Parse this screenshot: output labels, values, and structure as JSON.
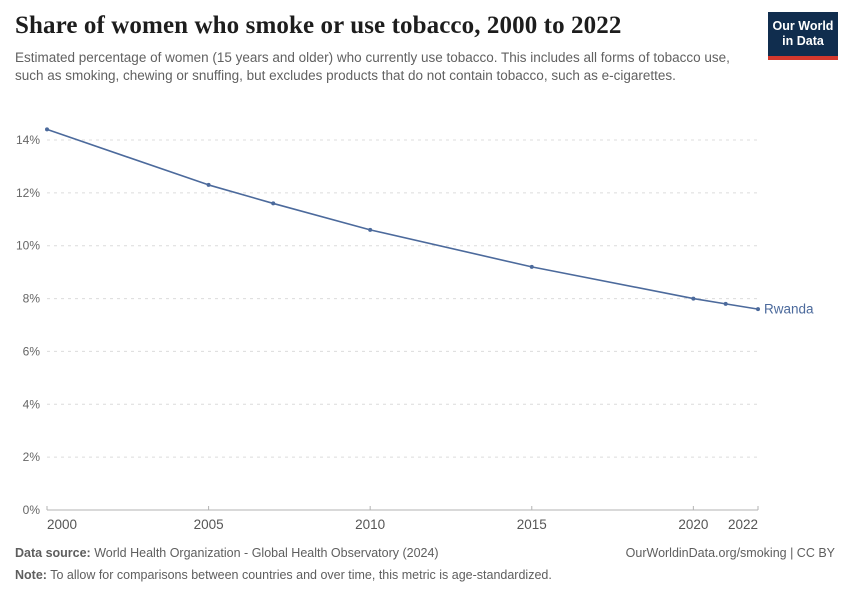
{
  "header": {
    "title": "Share of women who smoke or use tobacco, 2000 to 2022",
    "subtitle": "Estimated percentage of women (15 years and older) who currently use tobacco. This includes all forms of tobacco use, such as smoking, chewing or snuffing, but excludes products that do not contain tobacco, such as e-cigarettes.",
    "logo": {
      "line1": "Our World",
      "line2": "in Data",
      "bg_color": "#102d4e",
      "stripe_color": "#d4382d"
    }
  },
  "chart_data": {
    "type": "line",
    "title": "Share of women who smoke or use tobacco, 2000 to 2022",
    "xlabel": "",
    "ylabel": "",
    "xlim": [
      2000,
      2022
    ],
    "ylim": [
      0,
      14
    ],
    "x_ticks": [
      2000,
      2005,
      2010,
      2015,
      2020,
      2022
    ],
    "y_ticks": [
      0,
      2,
      4,
      6,
      8,
      10,
      12,
      14
    ],
    "y_tick_suffix": "%",
    "grid": "horizontal-dashed",
    "legend": "line-end-label",
    "series": [
      {
        "name": "Rwanda",
        "color": "#4C6A9C",
        "x": [
          2000,
          2005,
          2007,
          2010,
          2015,
          2020,
          2021,
          2022
        ],
        "values": [
          14.4,
          12.3,
          11.6,
          10.6,
          9.2,
          8.0,
          7.8,
          7.6
        ]
      }
    ],
    "colors": {
      "gridline": "#dcdcdc",
      "axis_line": "#b3b3b3",
      "y_tick_label": "#666666",
      "x_tick_label": "#565656"
    }
  },
  "footer": {
    "data_source_label": "Data source:",
    "data_source": "World Health Organization - Global Health Observatory (2024)",
    "note_label": "Note:",
    "note": "To allow for comparisons between countries and over time, this metric is age-standardized.",
    "attribution": "OurWorldinData.org/smoking | CC BY"
  }
}
